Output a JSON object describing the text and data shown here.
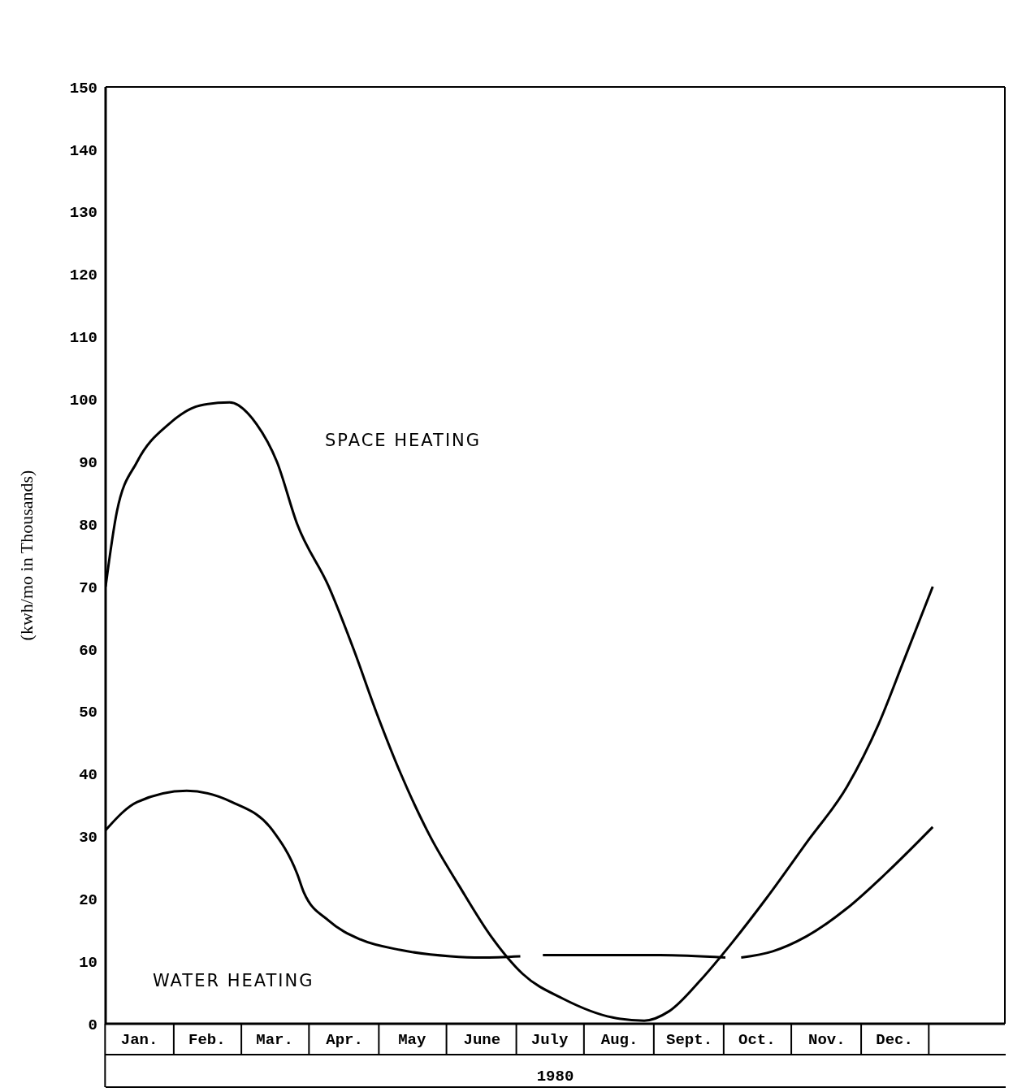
{
  "chart_data": {
    "type": "line",
    "ylabel": "(kwh/mo in Thousands)",
    "xlabel": "1980",
    "xlim": [
      "1980-01-01",
      "1981-02-03"
    ],
    "xticks": [
      {
        "value": "1980-01-16",
        "label": "Jan."
      },
      {
        "value": "1980-02-15",
        "label": "Feb."
      },
      {
        "value": "1980-03-16",
        "label": "Mar."
      },
      {
        "value": "1980-04-16",
        "label": "Apr."
      },
      {
        "value": "1980-05-16",
        "label": "May"
      },
      {
        "value": "1980-06-16",
        "label": "June"
      },
      {
        "value": "1980-07-16",
        "label": "July"
      },
      {
        "value": "1980-08-16",
        "label": "Aug."
      },
      {
        "value": "1980-09-16",
        "label": "Sept."
      },
      {
        "value": "1980-10-16",
        "label": "Oct."
      },
      {
        "value": "1980-11-16",
        "label": "Nov."
      },
      {
        "value": "1980-12-16",
        "label": "Dec."
      }
    ],
    "ylim": [
      0,
      150
    ],
    "yticks": [
      0,
      10,
      20,
      30,
      40,
      50,
      60,
      70,
      80,
      90,
      100,
      110,
      120,
      130,
      140,
      150
    ],
    "grid": false,
    "legend": false,
    "marker": "none",
    "line_style": "solid",
    "series": [
      {
        "name": "SPACE HEATING",
        "color": "#000000",
        "x": [
          "1980-01-01",
          "1980-01-06",
          "1980-01-15",
          "1980-01-29",
          "1980-02-12",
          "1980-02-25",
          "1980-03-08",
          "1980-03-17",
          "1980-03-26",
          "1980-04-09",
          "1980-04-20",
          "1980-04-30",
          "1980-05-11",
          "1980-05-24",
          "1980-06-06",
          "1980-06-20",
          "1980-07-04",
          "1980-07-22",
          "1980-08-13",
          "1980-08-27",
          "1980-09-07",
          "1980-09-21",
          "1980-10-05",
          "1980-10-20",
          "1980-11-07",
          "1980-11-25",
          "1980-12-09",
          "1980-12-20",
          "1981-01-02"
        ],
        "values": [
          70,
          82,
          90,
          96,
          99,
          99.5,
          96,
          90,
          80,
          70,
          60,
          50,
          40,
          30,
          22,
          14,
          8,
          4,
          1,
          0.5,
          2,
          7,
          13,
          20,
          29,
          38,
          48,
          58,
          70
        ]
      },
      {
        "name": "WATER HEATING",
        "color": "#000000",
        "x": [
          "1980-01-01",
          "1980-01-15",
          "1980-02-06",
          "1980-02-26",
          "1980-03-15",
          "1980-03-26",
          "1980-03-29",
          "1980-04-09",
          "1980-04-23",
          "1980-05-11",
          "1980-06-02",
          "1980-06-16",
          "1980-07-03",
          "1980-07-08",
          "1980-07-13",
          "1980-08-13",
          "1980-09-03",
          "1980-10-02",
          "1980-10-06",
          "1980-10-09",
          "1980-10-23",
          "1980-11-07",
          "1980-11-25",
          "1980-12-12",
          "1981-01-02"
        ],
        "values": [
          31,
          35.5,
          37.3,
          35.5,
          31,
          24,
          21,
          16.5,
          13.5,
          11.8,
          10.8,
          10.6,
          10.8,
          null,
          11,
          11,
          11,
          10.6,
          null,
          10.6,
          11.6,
          14,
          18.5,
          24,
          31.5
        ]
      }
    ]
  }
}
